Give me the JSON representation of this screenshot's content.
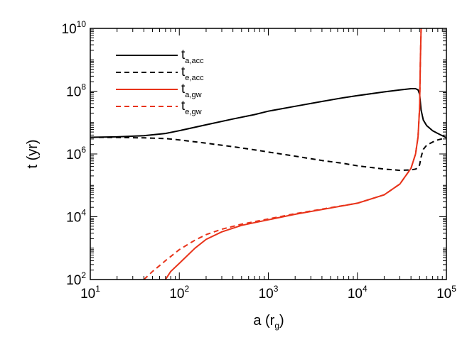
{
  "chart_data": {
    "type": "line",
    "xlabel": "a (r",
    "xlabel_sub": "g",
    "xlabel_suffix": ")",
    "ylabel": "t (yr)",
    "x_scale": "log",
    "y_scale": "log",
    "xlim": [
      10,
      100000
    ],
    "ylim": [
      100,
      10000000000
    ],
    "x_ticks": [
      {
        "value": 10,
        "base": "10",
        "exp": "1"
      },
      {
        "value": 100,
        "base": "10",
        "exp": "2"
      },
      {
        "value": 1000,
        "base": "10",
        "exp": "3"
      },
      {
        "value": 10000,
        "base": "10",
        "exp": "4"
      },
      {
        "value": 100000,
        "base": "10",
        "exp": "5"
      }
    ],
    "y_ticks": [
      {
        "value": 100,
        "base": "10",
        "exp": "2"
      },
      {
        "value": 10000,
        "base": "10",
        "exp": "4"
      },
      {
        "value": 1000000,
        "base": "10",
        "exp": "6"
      },
      {
        "value": 100000000,
        "base": "10",
        "exp": "8"
      },
      {
        "value": 10000000000,
        "base": "10",
        "exp": "10"
      }
    ],
    "grid": false,
    "legend_position": "top-left",
    "series": [
      {
        "name": "t",
        "name_sub": "a,acc",
        "color": "#000000",
        "dash": "solid",
        "x": [
          10,
          20,
          40,
          70,
          100,
          200,
          400,
          700,
          1000,
          2000,
          4000,
          7000,
          10000,
          20000,
          30000,
          40000,
          45000,
          48000,
          50000,
          52000,
          55000,
          60000,
          70000,
          80000,
          100000
        ],
        "y": [
          3400000,
          3500000,
          3800000,
          4500000,
          5500000,
          8500000,
          13000000,
          18000000,
          23000000,
          33000000,
          47000000,
          62000000,
          72000000,
          95000000,
          110000000,
          120000000,
          120000000,
          110000000,
          80000000,
          25000000,
          12000000,
          8000000,
          5500000,
          4500000,
          3300000
        ]
      },
      {
        "name": "t",
        "name_sub": "e,acc",
        "color": "#000000",
        "dash": "dashed",
        "x": [
          10,
          20,
          40,
          70,
          100,
          200,
          400,
          700,
          1000,
          2000,
          4000,
          7000,
          10000,
          20000,
          30000,
          40000,
          45000,
          48000,
          50000,
          52000,
          55000,
          60000,
          70000,
          80000,
          100000
        ],
        "y": [
          3400000,
          3350000,
          3250000,
          3100000,
          2800000,
          2200000,
          1700000,
          1350000,
          1150000,
          850000,
          620000,
          500000,
          420000,
          330000,
          300000,
          310000,
          330000,
          360000,
          450000,
          800000,
          1400000,
          1900000,
          2400000,
          2800000,
          3300000
        ]
      },
      {
        "name": "t",
        "name_sub": "a,gw",
        "color": "#e8331a",
        "dash": "solid",
        "x": [
          70,
          80,
          100,
          150,
          200,
          300,
          500,
          700,
          1000,
          2000,
          5000,
          10000,
          20000,
          30000,
          40000,
          45000,
          48000,
          50000,
          51000,
          52000
        ],
        "y": [
          100,
          180,
          330,
          1000,
          1900,
          3300,
          5300,
          6500,
          8000,
          12000,
          19000,
          27000,
          50000,
          110000,
          350000,
          1000000,
          3500000,
          30000000,
          1000000000,
          10000000000
        ]
      },
      {
        "name": "t",
        "name_sub": "e,gw",
        "color": "#e8331a",
        "dash": "dashed",
        "x": [
          40,
          50,
          70,
          100,
          150,
          200,
          300,
          500,
          700,
          1000,
          2000,
          5000,
          10000,
          20000,
          30000,
          40000,
          45000,
          48000,
          50000,
          51000,
          52000
        ],
        "y": [
          100,
          180,
          400,
          900,
          1800,
          2700,
          4000,
          5800,
          7000,
          8500,
          12500,
          19500,
          27000,
          50000,
          110000,
          350000,
          1000000,
          3500000,
          30000000,
          1000000000,
          10000000000
        ]
      }
    ]
  }
}
